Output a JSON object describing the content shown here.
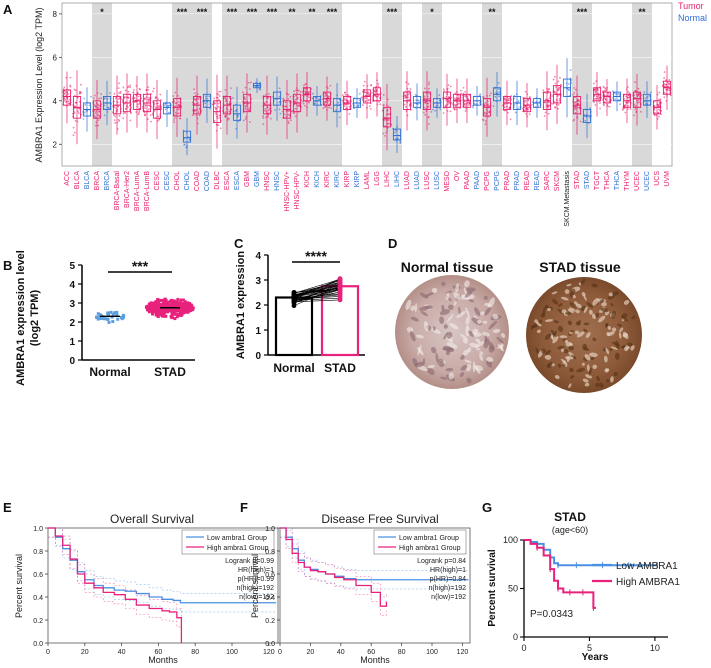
{
  "colors": {
    "tumor": "#e8226e",
    "normal": "#2f6fd6",
    "shade": "#d9d9d9",
    "low_km": "#4a90e2",
    "high_km": "#e8227c",
    "light_blue": "#5b9fe0",
    "pink": "#e8227c"
  },
  "panels": {
    "A": "A",
    "B": "B",
    "C": "C",
    "D": "D",
    "E": "E",
    "F": "F",
    "G": "G"
  },
  "panelA": {
    "chart_data": {
      "type": "box",
      "title": "",
      "ylabel": "AMBRA1 Expression Level (log2 TPM)",
      "ylim": [
        1,
        8.5
      ],
      "yticks": [
        "2",
        "4",
        "6",
        "8"
      ],
      "legend": [
        "Tumor",
        "Normal"
      ],
      "categories": [
        {
          "label": "ACC",
          "group": "tumor",
          "median": 4.2,
          "q1": 3.8,
          "q3": 4.5,
          "sig": "",
          "shade": false
        },
        {
          "label": "BLCA",
          "group": "tumor",
          "median": 3.7,
          "q1": 3.2,
          "q3": 4.2,
          "sig": "",
          "shade": false
        },
        {
          "label": "BLCA",
          "group": "normal",
          "median": 3.6,
          "q1": 3.3,
          "q3": 3.9,
          "sig": "",
          "shade": false
        },
        {
          "label": "BRCA",
          "group": "tumor",
          "median": 3.6,
          "q1": 3.2,
          "q3": 4.0,
          "sig": "*",
          "shade": true
        },
        {
          "label": "BRCA",
          "group": "normal",
          "median": 3.9,
          "q1": 3.6,
          "q3": 4.2,
          "sig": "",
          "shade": true
        },
        {
          "label": "BRCA-Basal",
          "group": "tumor",
          "median": 3.8,
          "q1": 3.4,
          "q3": 4.2,
          "sig": "",
          "shade": false
        },
        {
          "label": "BRCA-Her2",
          "group": "tumor",
          "median": 3.9,
          "q1": 3.5,
          "q3": 4.3,
          "sig": "",
          "shade": false
        },
        {
          "label": "BRCA-LumA",
          "group": "tumor",
          "median": 4.0,
          "q1": 3.6,
          "q3": 4.3,
          "sig": "",
          "shade": false
        },
        {
          "label": "BRCA-LumB",
          "group": "tumor",
          "median": 3.9,
          "q1": 3.5,
          "q3": 4.3,
          "sig": "",
          "shade": false
        },
        {
          "label": "CESC",
          "group": "tumor",
          "median": 3.6,
          "q1": 3.2,
          "q3": 4.0,
          "sig": "",
          "shade": false
        },
        {
          "label": "CESC",
          "group": "normal",
          "median": 3.7,
          "q1": 3.4,
          "q3": 3.9,
          "sig": "",
          "shade": false
        },
        {
          "label": "CHOL",
          "group": "tumor",
          "median": 3.7,
          "q1": 3.3,
          "q3": 4.1,
          "sig": "***",
          "shade": true
        },
        {
          "label": "CHOL",
          "group": "normal",
          "median": 2.3,
          "q1": 2.1,
          "q3": 2.6,
          "sig": "",
          "shade": true
        },
        {
          "label": "COAD",
          "group": "tumor",
          "median": 3.8,
          "q1": 3.4,
          "q3": 4.2,
          "sig": "***",
          "shade": true
        },
        {
          "label": "COAD",
          "group": "normal",
          "median": 4.0,
          "q1": 3.7,
          "q3": 4.3,
          "sig": "",
          "shade": true
        },
        {
          "label": "DLBC",
          "group": "tumor",
          "median": 3.5,
          "q1": 3.0,
          "q3": 4.0,
          "sig": "",
          "shade": false
        },
        {
          "label": "ESCA",
          "group": "tumor",
          "median": 3.8,
          "q1": 3.4,
          "q3": 4.2,
          "sig": "***",
          "shade": true
        },
        {
          "label": "ESCA",
          "group": "normal",
          "median": 3.4,
          "q1": 3.1,
          "q3": 3.8,
          "sig": "",
          "shade": true
        },
        {
          "label": "GBM",
          "group": "tumor",
          "median": 3.9,
          "q1": 3.5,
          "q3": 4.3,
          "sig": "***",
          "shade": true
        },
        {
          "label": "GBM",
          "group": "normal",
          "median": 4.7,
          "q1": 4.6,
          "q3": 4.8,
          "sig": "",
          "shade": true
        },
        {
          "label": "HNSC",
          "group": "tumor",
          "median": 3.8,
          "q1": 3.4,
          "q3": 4.2,
          "sig": "***",
          "shade": true
        },
        {
          "label": "HNSC",
          "group": "normal",
          "median": 4.1,
          "q1": 3.8,
          "q3": 4.4,
          "sig": "",
          "shade": true
        },
        {
          "label": "HNSC-HPV+",
          "group": "tumor",
          "median": 3.6,
          "q1": 3.2,
          "q3": 4.0,
          "sig": "**",
          "shade": true
        },
        {
          "label": "HNSC-HPV-",
          "group": "tumor",
          "median": 3.9,
          "q1": 3.5,
          "q3": 4.3,
          "sig": "",
          "shade": true
        },
        {
          "label": "KICH",
          "group": "tumor",
          "median": 4.3,
          "q1": 4.0,
          "q3": 4.6,
          "sig": "**",
          "shade": true
        },
        {
          "label": "KICH",
          "group": "normal",
          "median": 4.0,
          "q1": 3.8,
          "q3": 4.2,
          "sig": "",
          "shade": true
        },
        {
          "label": "KIRC",
          "group": "tumor",
          "median": 4.1,
          "q1": 3.8,
          "q3": 4.4,
          "sig": "***",
          "shade": true
        },
        {
          "label": "KIRC",
          "group": "normal",
          "median": 3.8,
          "q1": 3.5,
          "q3": 4.1,
          "sig": "",
          "shade": true
        },
        {
          "label": "KIRP",
          "group": "tumor",
          "median": 3.9,
          "q1": 3.6,
          "q3": 4.2,
          "sig": "",
          "shade": false
        },
        {
          "label": "KIRP",
          "group": "normal",
          "median": 3.9,
          "q1": 3.7,
          "q3": 4.1,
          "sig": "",
          "shade": false
        },
        {
          "label": "LAML",
          "group": "tumor",
          "median": 4.2,
          "q1": 3.9,
          "q3": 4.5,
          "sig": "",
          "shade": false
        },
        {
          "label": "LGG",
          "group": "tumor",
          "median": 4.3,
          "q1": 4.0,
          "q3": 4.6,
          "sig": "",
          "shade": false
        },
        {
          "label": "LIHC",
          "group": "tumor",
          "median": 3.2,
          "q1": 2.8,
          "q3": 3.7,
          "sig": "***",
          "shade": true
        },
        {
          "label": "LIHC",
          "group": "normal",
          "median": 2.4,
          "q1": 2.2,
          "q3": 2.7,
          "sig": "",
          "shade": true
        },
        {
          "label": "LUAD",
          "group": "tumor",
          "median": 4.0,
          "q1": 3.6,
          "q3": 4.4,
          "sig": "",
          "shade": false
        },
        {
          "label": "LUAD",
          "group": "normal",
          "median": 3.9,
          "q1": 3.7,
          "q3": 4.2,
          "sig": "",
          "shade": false
        },
        {
          "label": "LUSC",
          "group": "tumor",
          "median": 4.0,
          "q1": 3.6,
          "q3": 4.4,
          "sig": "*",
          "shade": true
        },
        {
          "label": "LUSC",
          "group": "normal",
          "median": 3.9,
          "q1": 3.7,
          "q3": 4.1,
          "sig": "",
          "shade": true
        },
        {
          "label": "MESO",
          "group": "tumor",
          "median": 4.1,
          "q1": 3.7,
          "q3": 4.4,
          "sig": "",
          "shade": false
        },
        {
          "label": "OV",
          "group": "tumor",
          "median": 4.0,
          "q1": 3.7,
          "q3": 4.3,
          "sig": "",
          "shade": false
        },
        {
          "label": "PAAD",
          "group": "tumor",
          "median": 4.0,
          "q1": 3.7,
          "q3": 4.3,
          "sig": "",
          "shade": false
        },
        {
          "label": "PAAD",
          "group": "normal",
          "median": 4.0,
          "q1": 3.8,
          "q3": 4.2,
          "sig": "",
          "shade": false
        },
        {
          "label": "PCPG",
          "group": "tumor",
          "median": 3.7,
          "q1": 3.3,
          "q3": 4.1,
          "sig": "**",
          "shade": true
        },
        {
          "label": "PCPG",
          "group": "normal",
          "median": 4.3,
          "q1": 4.0,
          "q3": 4.6,
          "sig": "",
          "shade": true
        },
        {
          "label": "PRAD",
          "group": "tumor",
          "median": 3.9,
          "q1": 3.6,
          "q3": 4.2,
          "sig": "",
          "shade": false
        },
        {
          "label": "PRAD",
          "group": "normal",
          "median": 3.9,
          "q1": 3.6,
          "q3": 4.2,
          "sig": "",
          "shade": false
        },
        {
          "label": "READ",
          "group": "tumor",
          "median": 3.8,
          "q1": 3.5,
          "q3": 4.1,
          "sig": "",
          "shade": false
        },
        {
          "label": "READ",
          "group": "normal",
          "median": 3.9,
          "q1": 3.7,
          "q3": 4.1,
          "sig": "",
          "shade": false
        },
        {
          "label": "SARC",
          "group": "tumor",
          "median": 4.0,
          "q1": 3.6,
          "q3": 4.4,
          "sig": "",
          "shade": false
        },
        {
          "label": "SKCM",
          "group": "tumor",
          "median": 4.3,
          "q1": 3.9,
          "q3": 4.7,
          "sig": "",
          "shade": false
        },
        {
          "label": "SKCM.Metastasis",
          "group": "normal",
          "median": 4.6,
          "q1": 4.2,
          "q3": 5.0,
          "sig": "",
          "shade": false
        },
        {
          "label": "STAD",
          "group": "tumor",
          "median": 3.8,
          "q1": 3.4,
          "q3": 4.2,
          "sig": "***",
          "shade": true
        },
        {
          "label": "STAD",
          "group": "normal",
          "median": 3.3,
          "q1": 3.0,
          "q3": 3.6,
          "sig": "",
          "shade": true
        },
        {
          "label": "TGCT",
          "group": "tumor",
          "median": 4.3,
          "q1": 4.0,
          "q3": 4.6,
          "sig": "",
          "shade": false
        },
        {
          "label": "THCA",
          "group": "tumor",
          "median": 4.2,
          "q1": 3.9,
          "q3": 4.4,
          "sig": "",
          "shade": false
        },
        {
          "label": "THCA",
          "group": "normal",
          "median": 4.2,
          "q1": 4.0,
          "q3": 4.4,
          "sig": "",
          "shade": false
        },
        {
          "label": "THYM",
          "group": "tumor",
          "median": 4.0,
          "q1": 3.7,
          "q3": 4.3,
          "sig": "",
          "shade": false
        },
        {
          "label": "UCEC",
          "group": "tumor",
          "median": 4.1,
          "q1": 3.7,
          "q3": 4.4,
          "sig": "**",
          "shade": true
        },
        {
          "label": "UCEC",
          "group": "normal",
          "median": 4.0,
          "q1": 3.8,
          "q3": 4.3,
          "sig": "",
          "shade": true
        },
        {
          "label": "UCS",
          "group": "tumor",
          "median": 3.7,
          "q1": 3.4,
          "q3": 4.0,
          "sig": "",
          "shade": false
        },
        {
          "label": "UVM",
          "group": "tumor",
          "median": 4.6,
          "q1": 4.3,
          "q3": 4.9,
          "sig": "",
          "shade": false
        }
      ]
    }
  },
  "panelB": {
    "chart_data": {
      "type": "scatter",
      "ylabel_line1": "AMBRA1 expression level",
      "ylabel_line2": "(log2 TPM)",
      "categories": [
        "Normal",
        "STAD"
      ],
      "means": [
        2.3,
        2.75
      ],
      "ylim": [
        0,
        5
      ],
      "yticks": [
        "0",
        "1",
        "2",
        "3",
        "4",
        "5"
      ],
      "sig": "***"
    }
  },
  "panelC": {
    "chart_data": {
      "type": "bar",
      "ylabel": "AMBRA1 expression",
      "categories": [
        "Normal",
        "STAD"
      ],
      "values": [
        2.3,
        2.75
      ],
      "ylim": [
        0,
        4
      ],
      "yticks": [
        "0",
        "1",
        "2",
        "3",
        "4"
      ],
      "sig": "****"
    }
  },
  "panelD": {
    "left_title": "Normal tissue",
    "right_title": "STAD tissue"
  },
  "panelE": {
    "chart_data": {
      "type": "line",
      "title": "Overall Survival",
      "xlabel": "Months",
      "ylabel": "Percent survival",
      "xlim": [
        0,
        125
      ],
      "ylim": [
        0,
        1
      ],
      "xticks": [
        "0",
        "20",
        "40",
        "60",
        "80",
        "100",
        "120"
      ],
      "yticks": [
        "0.0",
        "0.2",
        "0.4",
        "0.6",
        "0.8",
        "1.0"
      ],
      "legend": [
        "Low ambra1 Group",
        "High ambra1 Group"
      ],
      "stats": [
        "Logrank p=0.99",
        "HR(high)=1",
        "p(HR)=0.99",
        "n(high)=192",
        "n(low)=192"
      ],
      "series": [
        {
          "name": "Low ambra1 Group",
          "x": [
            0,
            4,
            8,
            12,
            16,
            20,
            25,
            30,
            36,
            42,
            48,
            55,
            62,
            68,
            72,
            80,
            100,
            124
          ],
          "y": [
            1.0,
            0.92,
            0.82,
            0.72,
            0.62,
            0.55,
            0.5,
            0.48,
            0.46,
            0.45,
            0.43,
            0.4,
            0.38,
            0.37,
            0.35,
            0.35,
            0.35,
            0.35
          ]
        },
        {
          "name": "High ambra1 Group",
          "x": [
            0,
            4,
            8,
            12,
            16,
            20,
            25,
            30,
            36,
            42,
            48,
            55,
            62,
            66,
            70,
            72,
            72.5
          ],
          "y": [
            1.0,
            0.93,
            0.85,
            0.73,
            0.6,
            0.52,
            0.48,
            0.44,
            0.42,
            0.38,
            0.33,
            0.3,
            0.28,
            0.27,
            0.22,
            0.22,
            0.0
          ]
        }
      ]
    }
  },
  "panelF": {
    "chart_data": {
      "type": "line",
      "title": "Disease Free Survival",
      "xlabel": "Months",
      "ylabel": "Percent survival",
      "xlim": [
        0,
        125
      ],
      "ylim": [
        0,
        1
      ],
      "xticks": [
        "0",
        "20",
        "40",
        "60",
        "80",
        "100",
        "120"
      ],
      "yticks": [
        "0.0",
        "0.2",
        "0.4",
        "0.6",
        "0.8",
        "1.0"
      ],
      "legend": [
        "Low ambra1 Group",
        "High ambra1 Group"
      ],
      "stats": [
        "Logrank p=0.84",
        "HR(high)=1",
        "p(HR)=0.84",
        "n(high)=192",
        "n(low)=192"
      ],
      "series": [
        {
          "name": "Low ambra1 Group",
          "x": [
            0,
            4,
            8,
            12,
            16,
            20,
            25,
            30,
            36,
            42,
            50,
            60,
            70,
            124
          ],
          "y": [
            1.0,
            0.92,
            0.82,
            0.72,
            0.66,
            0.64,
            0.62,
            0.6,
            0.58,
            0.56,
            0.55,
            0.55,
            0.55,
            0.55
          ]
        },
        {
          "name": "High ambra1 Group",
          "x": [
            0,
            4,
            8,
            12,
            16,
            20,
            25,
            30,
            36,
            42,
            50,
            60,
            66,
            70
          ],
          "y": [
            1.0,
            0.9,
            0.78,
            0.7,
            0.66,
            0.63,
            0.62,
            0.6,
            0.57,
            0.55,
            0.5,
            0.44,
            0.32,
            0.36
          ]
        }
      ]
    }
  },
  "panelG": {
    "chart_data": {
      "type": "line",
      "title": "STAD",
      "subtitle": "(age<60)",
      "xlabel": "Years",
      "ylabel": "Percent survival",
      "xlim": [
        0,
        11
      ],
      "ylim": [
        0,
        100
      ],
      "xticks": [
        "0",
        "5",
        "10"
      ],
      "yticks": [
        "0",
        "50",
        "100"
      ],
      "legend": [
        "Low AMBRA1",
        "High AMBRA1"
      ],
      "pvalue": "P=0.0343",
      "series": [
        {
          "name": "Low AMBRA1",
          "x": [
            0,
            0.5,
            1,
            1.5,
            2,
            2.3,
            2.6,
            3,
            4,
            5,
            6,
            7,
            8,
            9,
            10.2
          ],
          "y": [
            100,
            98,
            96,
            90,
            82,
            76,
            74,
            74,
            74,
            74,
            74,
            74,
            74,
            74,
            74
          ]
        },
        {
          "name": "High AMBRA1",
          "x": [
            0,
            0.5,
            1,
            1.5,
            2,
            2.3,
            2.6,
            3,
            3.5,
            4,
            4.5,
            5,
            5.3,
            5.5
          ],
          "y": [
            100,
            96,
            92,
            84,
            70,
            58,
            50,
            46,
            46,
            46,
            46,
            46,
            30,
            30
          ]
        }
      ]
    }
  }
}
